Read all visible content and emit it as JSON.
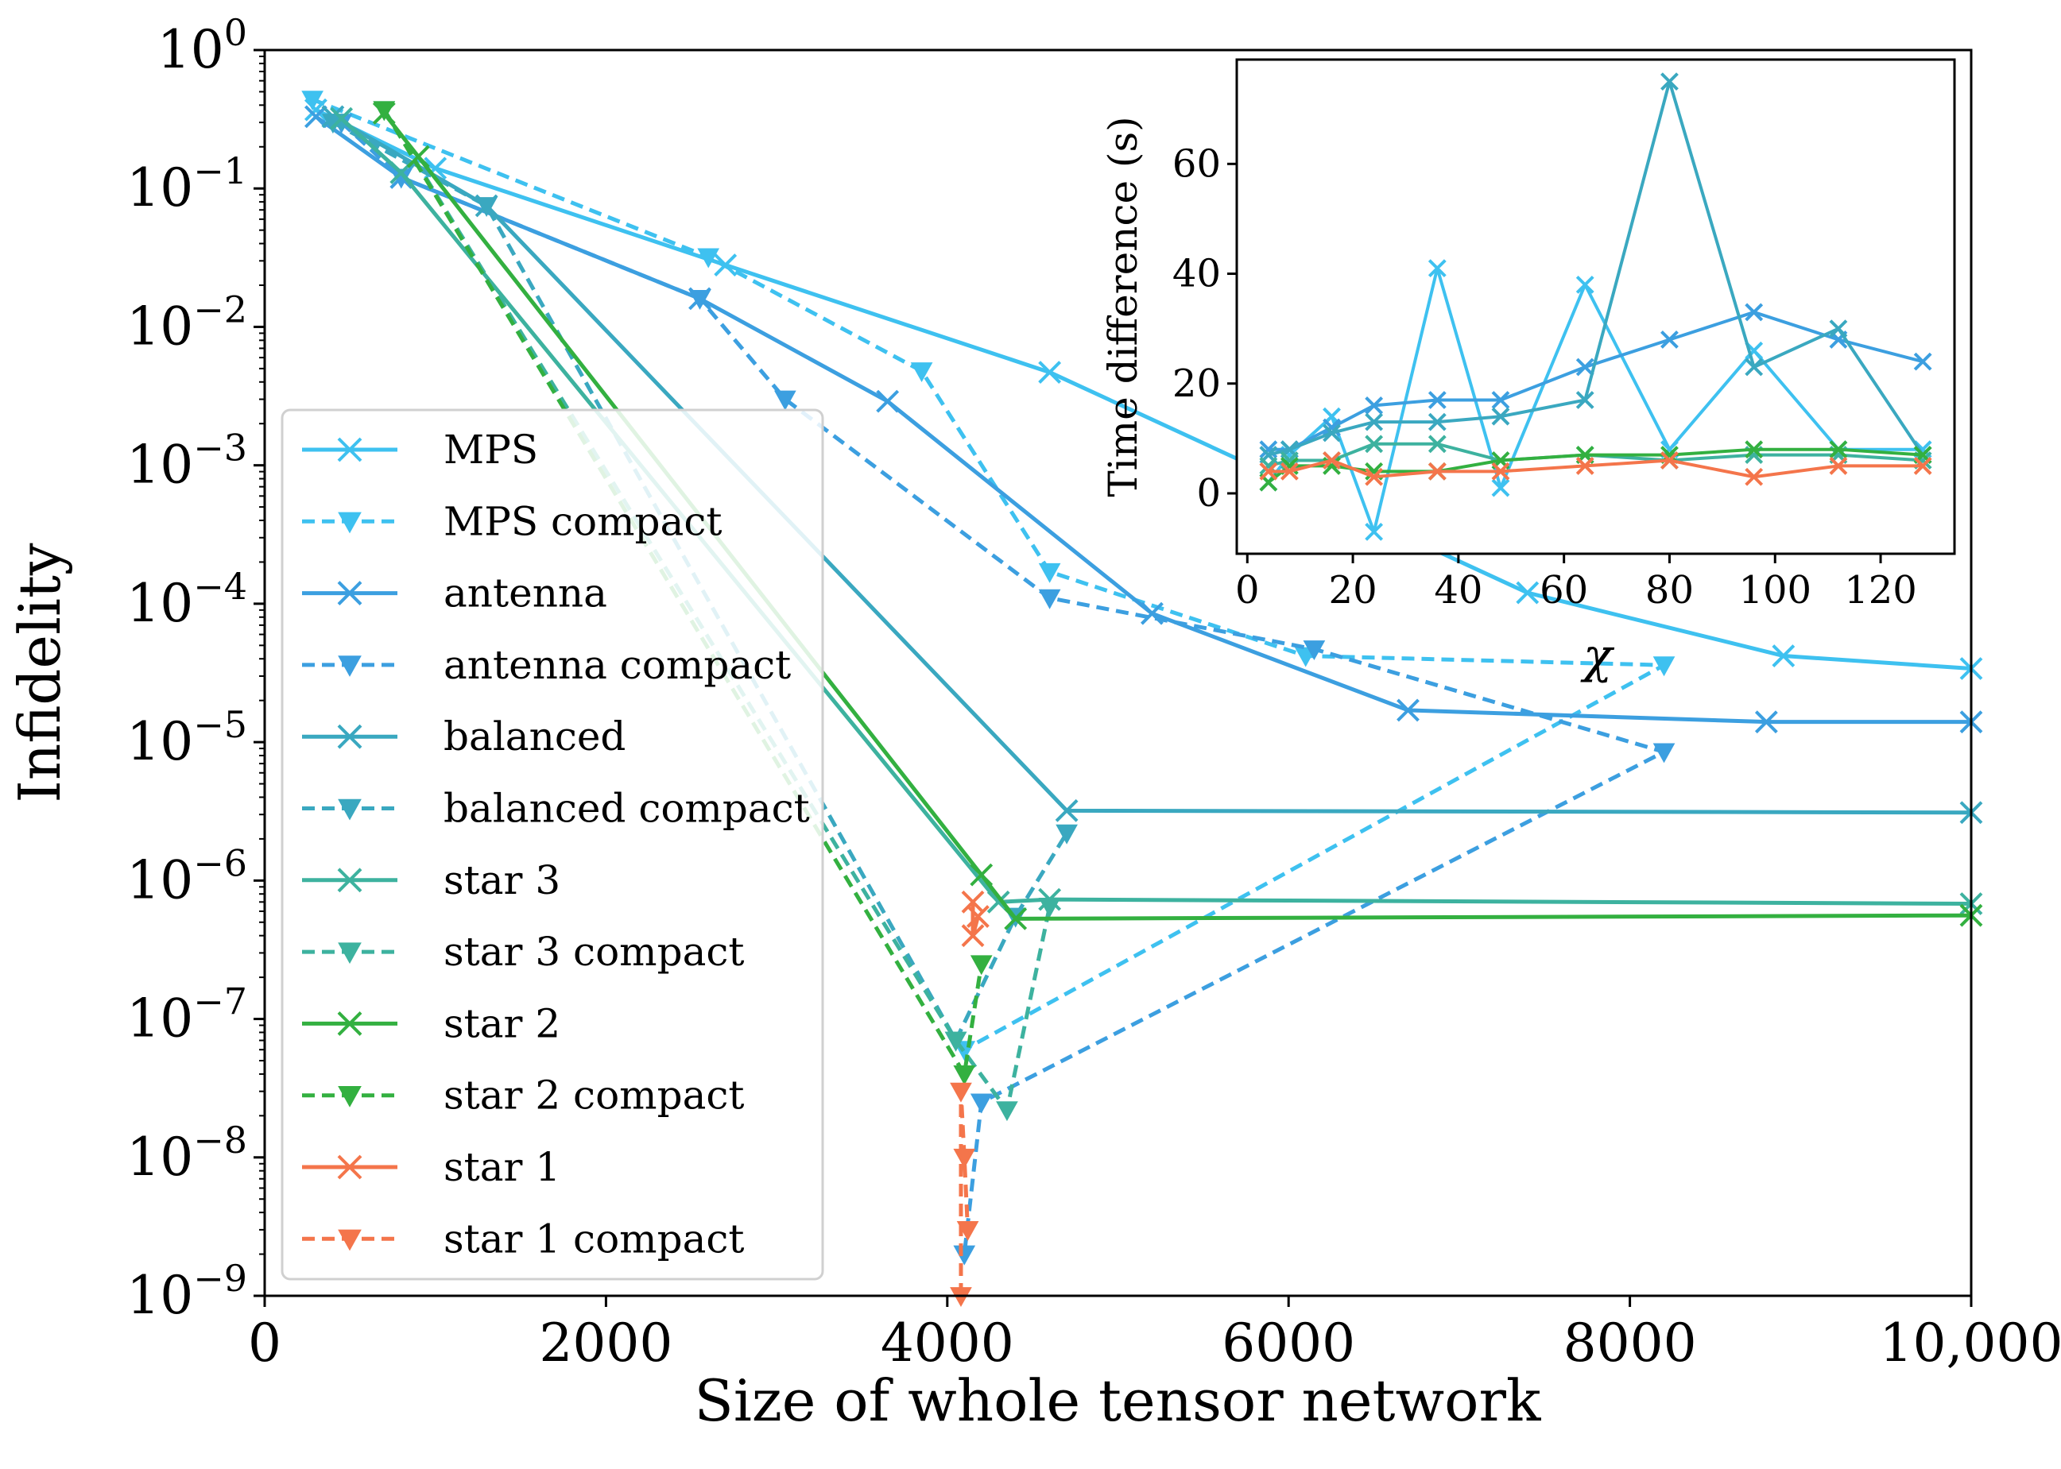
{
  "chart_data": [
    {
      "id": "main",
      "type": "line",
      "xlabel": "Size of whole tensor network",
      "ylabel": "Infidelity",
      "xlim": [
        0,
        10000
      ],
      "ylim": [
        1e-09,
        1
      ],
      "yscale": "log",
      "x_ticks": [
        {
          "value": 0,
          "label": "0"
        },
        {
          "value": 2000,
          "label": "2000"
        },
        {
          "value": 4000,
          "label": "4000"
        },
        {
          "value": 6000,
          "label": "6000"
        },
        {
          "value": 8000,
          "label": "8000"
        },
        {
          "value": 10000,
          "label": "10,000"
        }
      ],
      "y_ticks": [
        {
          "exp": 0,
          "base": "10",
          "sup": "0"
        },
        {
          "exp": -1,
          "base": "10",
          "sup": "−1"
        },
        {
          "exp": -2,
          "base": "10",
          "sup": "−2"
        },
        {
          "exp": -3,
          "base": "10",
          "sup": "−3"
        },
        {
          "exp": -4,
          "base": "10",
          "sup": "−4"
        },
        {
          "exp": -5,
          "base": "10",
          "sup": "−5"
        },
        {
          "exp": -6,
          "base": "10",
          "sup": "−6"
        },
        {
          "exp": -7,
          "base": "10",
          "sup": "−7"
        },
        {
          "exp": -8,
          "base": "10",
          "sup": "−8"
        },
        {
          "exp": -9,
          "base": "10",
          "sup": "−9"
        }
      ],
      "legend_position": "center-left",
      "series": [
        {
          "name": "MPS",
          "color": "#3ec1f0",
          "style": "solid",
          "marker": "x",
          "points": [
            [
              300,
              0.37
            ],
            [
              1000,
              0.14
            ],
            [
              2700,
              0.028
            ],
            [
              4600,
              0.0047
            ],
            [
              7400,
              0.00012
            ],
            [
              8900,
              4.2e-05
            ],
            [
              10000,
              3.4e-05
            ]
          ]
        },
        {
          "name": "MPS compact",
          "color": "#3ec1f0",
          "style": "dashed",
          "marker": "v",
          "points": [
            [
              280,
              0.44
            ],
            [
              2600,
              0.032
            ],
            [
              3850,
              0.0048
            ],
            [
              4600,
              0.00017
            ],
            [
              6100,
              4.2e-05
            ],
            [
              8200,
              3.6e-05
            ],
            [
              4100,
              6e-08
            ]
          ]
        },
        {
          "name": "antenna",
          "color": "#3c9fe0",
          "style": "solid",
          "marker": "x",
          "points": [
            [
              300,
              0.33
            ],
            [
              800,
              0.12
            ],
            [
              2550,
              0.016
            ],
            [
              3650,
              0.0029
            ],
            [
              5200,
              8.5e-05
            ],
            [
              6700,
              1.7e-05
            ],
            [
              8800,
              1.4e-05
            ],
            [
              10000,
              1.4e-05
            ]
          ]
        },
        {
          "name": "antenna compact",
          "color": "#3c9fe0",
          "style": "dashed",
          "marker": "v",
          "points": [
            [
              450,
              0.3
            ],
            [
              800,
              0.12
            ],
            [
              2550,
              0.016
            ],
            [
              3050,
              0.003
            ],
            [
              4600,
              0.00011
            ],
            [
              6150,
              4.7e-05
            ],
            [
              8200,
              8.5e-06
            ],
            [
              4200,
              2.5e-08
            ],
            [
              4100,
              2e-09
            ]
          ]
        },
        {
          "name": "balanced",
          "color": "#3aa8c0",
          "style": "solid",
          "marker": "x",
          "points": [
            [
              400,
              0.33
            ],
            [
              1300,
              0.075
            ],
            [
              4700,
              3.2e-06
            ],
            [
              10000,
              3.1e-06
            ]
          ]
        },
        {
          "name": "balanced compact",
          "color": "#3aa8c0",
          "style": "dashed",
          "marker": "v",
          "points": [
            [
              400,
              0.3
            ],
            [
              1300,
              0.075
            ],
            [
              4050,
              7e-08
            ],
            [
              4400,
              5.5e-07
            ],
            [
              4700,
              2.2e-06
            ]
          ]
        },
        {
          "name": "star 3",
          "color": "#3db29f",
          "style": "solid",
          "marker": "x",
          "points": [
            [
              450,
              0.32
            ],
            [
              800,
              0.13
            ],
            [
              4300,
              7e-07
            ],
            [
              4600,
              7.3e-07
            ],
            [
              10000,
              6.8e-07
            ]
          ]
        },
        {
          "name": "star 3 compact",
          "color": "#3db29f",
          "style": "dashed",
          "marker": "v",
          "points": [
            [
              700,
              0.37
            ],
            [
              4050,
              7e-08
            ],
            [
              4350,
              2.2e-08
            ],
            [
              4600,
              6.5e-07
            ]
          ]
        },
        {
          "name": "star 2",
          "color": "#33b040",
          "style": "solid",
          "marker": "x",
          "points": [
            [
              700,
              0.35
            ],
            [
              900,
              0.17
            ],
            [
              4200,
              1.1e-06
            ],
            [
              4400,
              5.3e-07
            ],
            [
              10000,
              5.6e-07
            ]
          ]
        },
        {
          "name": "star 2 compact",
          "color": "#33b040",
          "style": "dashed",
          "marker": "v",
          "points": [
            [
              700,
              0.37
            ],
            [
              4100,
              4e-08
            ],
            [
              4200,
              2.5e-07
            ]
          ]
        },
        {
          "name": "star 1",
          "color": "#f4754b",
          "style": "solid",
          "marker": "x",
          "points": [
            [
              4150,
              7e-07
            ],
            [
              4150,
              4e-07
            ],
            [
              4180,
              5.5e-07
            ]
          ]
        },
        {
          "name": "star 1 compact",
          "color": "#f4754b",
          "style": "dashed",
          "marker": "v",
          "points": [
            [
              4080,
              1e-09
            ],
            [
              4080,
              3e-08
            ],
            [
              4100,
              1e-08
            ],
            [
              4120,
              3e-09
            ]
          ]
        }
      ]
    },
    {
      "id": "inset",
      "type": "line",
      "xlabel": "χ",
      "ylabel": "Time difference (s)",
      "xlim": [
        -2,
        134
      ],
      "ylim": [
        -11,
        79
      ],
      "x_ticks": [
        {
          "value": 0,
          "label": "0"
        },
        {
          "value": 20,
          "label": "20"
        },
        {
          "value": 40,
          "label": "40"
        },
        {
          "value": 60,
          "label": "60"
        },
        {
          "value": 80,
          "label": "80"
        },
        {
          "value": 100,
          "label": "100"
        },
        {
          "value": 120,
          "label": "120"
        }
      ],
      "y_ticks": [
        {
          "value": 0,
          "label": "0"
        },
        {
          "value": 20,
          "label": "20"
        },
        {
          "value": 40,
          "label": "40"
        },
        {
          "value": 60,
          "label": "60"
        }
      ],
      "x_values": [
        4,
        8,
        16,
        24,
        36,
        48,
        64,
        80,
        96,
        112,
        128
      ],
      "series": [
        {
          "name": "MPS",
          "color": "#3ec1f0",
          "values": [
            2,
            7,
            14,
            -7,
            41,
            1,
            38,
            8,
            26,
            8,
            8
          ]
        },
        {
          "name": "antenna",
          "color": "#3c9fe0",
          "values": [
            8,
            8,
            12,
            16,
            17,
            17,
            23,
            28,
            33,
            28,
            24
          ]
        },
        {
          "name": "balanced",
          "color": "#3aa8c0",
          "values": [
            7,
            8,
            11,
            13,
            13,
            14,
            17,
            75,
            23,
            30,
            7
          ]
        },
        {
          "name": "star 3",
          "color": "#3db29f",
          "values": [
            5,
            6,
            6,
            9,
            9,
            6,
            7,
            6,
            7,
            7,
            6
          ]
        },
        {
          "name": "star 2",
          "color": "#33b040",
          "values": [
            2,
            5,
            5,
            4,
            4,
            6,
            7,
            7,
            8,
            8,
            7
          ]
        },
        {
          "name": "star 1",
          "color": "#f4754b",
          "values": [
            4,
            4,
            6,
            3,
            4,
            4,
            5,
            6,
            3,
            5,
            5
          ]
        }
      ]
    }
  ]
}
